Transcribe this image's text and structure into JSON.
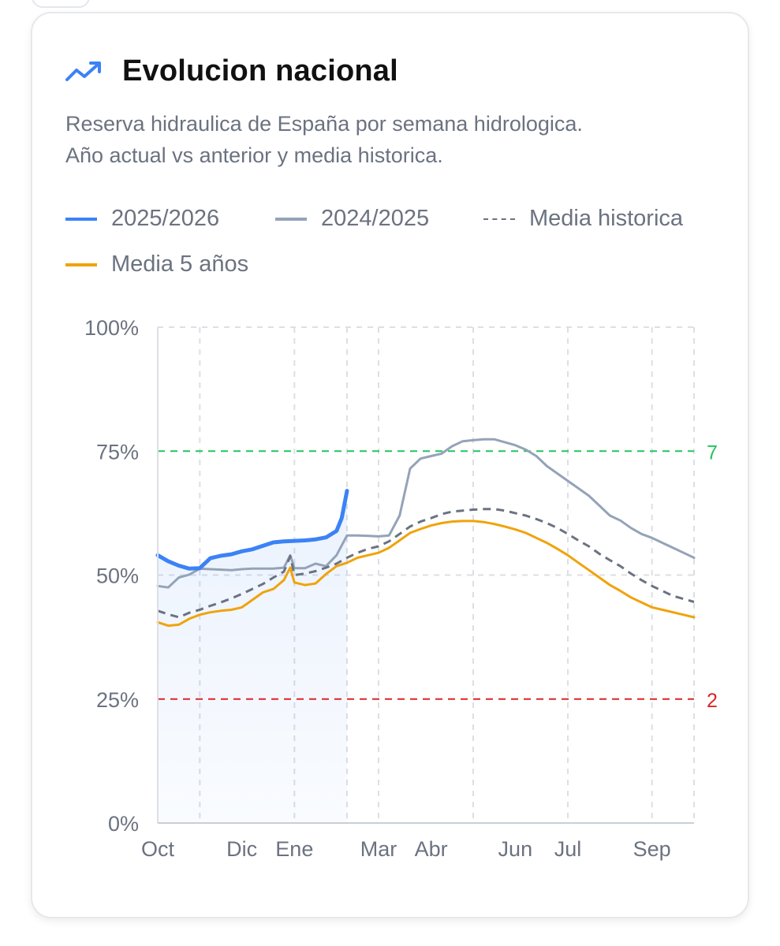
{
  "header": {
    "icon": "trending-up-icon",
    "title": "Evolucion nacional",
    "subtitle_line1": "Reserva hidraulica de España por semana hidrologica.",
    "subtitle_line2": "Año actual vs anterior y media historica."
  },
  "colors": {
    "current": "#3b82f6",
    "previous": "#94a3b8",
    "historical": "#6b7280",
    "five_year": "#f0a30a",
    "upper_threshold": "#22c55e",
    "lower_threshold": "#dc2626",
    "grid": "#dcdfe4"
  },
  "legend": [
    {
      "label": "2025/2026",
      "style": "solid",
      "color": "#3b82f6"
    },
    {
      "label": "2024/2025",
      "style": "solid",
      "color": "#94a3b8"
    },
    {
      "label": "Media historica",
      "style": "dashed",
      "color": "#6b7280"
    },
    {
      "label": "Media 5 años",
      "style": "solid",
      "color": "#f0a30a"
    }
  ],
  "chart_data": {
    "type": "line",
    "title": "Evolucion nacional",
    "ylabel": "",
    "xlabel": "",
    "ylim": [
      0,
      100
    ],
    "xlim": [
      0,
      51
    ],
    "yticks": [
      {
        "value": 100,
        "label": "100%"
      },
      {
        "value": 75,
        "label": "75%"
      },
      {
        "value": 50,
        "label": "50%"
      },
      {
        "value": 25,
        "label": "25%"
      },
      {
        "value": 0,
        "label": "0%"
      }
    ],
    "xticks": [
      {
        "week": 0,
        "label": "Oct"
      },
      {
        "week": 8,
        "label": "Dic"
      },
      {
        "week": 13,
        "label": "Ene"
      },
      {
        "week": 21,
        "label": "Mar"
      },
      {
        "week": 26,
        "label": "Abr"
      },
      {
        "week": 34,
        "label": "Jun"
      },
      {
        "week": 39,
        "label": "Jul"
      },
      {
        "week": 47,
        "label": "Sep"
      }
    ],
    "vertical_gridlines_weeks": [
      0,
      4,
      13,
      18,
      21,
      30,
      39,
      47,
      51
    ],
    "thresholds": [
      {
        "value": 75,
        "label": "7",
        "color": "#22c55e"
      },
      {
        "value": 25,
        "label": "2",
        "color": "#dc2626"
      }
    ],
    "series": [
      {
        "name": "2025/2026",
        "color": "#3b82f6",
        "style": "solid",
        "fill": true,
        "x": [
          0,
          1,
          2,
          3,
          4,
          5,
          6,
          7,
          8,
          9,
          10,
          11,
          12,
          13,
          14,
          15,
          16,
          17,
          17.5,
          18
        ],
        "values": [
          54.0,
          52.8,
          51.9,
          51.3,
          51.4,
          53.4,
          53.9,
          54.2,
          54.8,
          55.2,
          55.9,
          56.6,
          56.8,
          56.9,
          57.0,
          57.2,
          57.6,
          58.9,
          61.5,
          67.0
        ]
      },
      {
        "name": "2024/2025",
        "color": "#94a3b8",
        "style": "solid",
        "x": [
          0,
          1,
          2,
          3,
          4,
          5,
          6,
          7,
          8,
          9,
          10,
          11,
          12,
          12.6,
          13,
          14,
          15,
          16,
          17,
          18,
          19,
          20,
          21,
          22,
          23,
          24,
          25,
          26,
          27,
          28,
          29,
          30,
          31,
          32,
          33,
          34,
          35,
          36,
          37,
          38,
          39,
          40,
          41,
          42,
          43,
          44,
          45,
          46,
          47,
          48,
          49,
          50,
          51
        ],
        "values": [
          47.8,
          47.5,
          49.5,
          50.1,
          51.3,
          51.2,
          51.1,
          51.0,
          51.2,
          51.3,
          51.3,
          51.3,
          51.5,
          54.0,
          51.4,
          51.4,
          52.3,
          51.8,
          54.0,
          58.0,
          58.0,
          57.9,
          57.8,
          58.0,
          62.0,
          71.5,
          73.5,
          74.0,
          74.5,
          76.0,
          77.0,
          77.2,
          77.4,
          77.4,
          76.8,
          76.2,
          75.3,
          74.0,
          72.0,
          70.5,
          69.0,
          67.5,
          66.0,
          64.0,
          62.0,
          61.0,
          59.5,
          58.3,
          57.5,
          56.5,
          55.5,
          54.5,
          53.5
        ]
      },
      {
        "name": "Media historica",
        "color": "#6b7280",
        "style": "dashed",
        "x": [
          0,
          1,
          2,
          3,
          4,
          5,
          6,
          7,
          8,
          9,
          10,
          11,
          12,
          12.6,
          13,
          14,
          15,
          16,
          17,
          18,
          19,
          20,
          21,
          22,
          23,
          24,
          25,
          26,
          27,
          28,
          29,
          30,
          31,
          32,
          33,
          34,
          35,
          36,
          37,
          38,
          39,
          40,
          41,
          42,
          43,
          44,
          45,
          46,
          47,
          48,
          49,
          50,
          51
        ],
        "values": [
          42.8,
          42.1,
          41.5,
          42.4,
          43.0,
          43.8,
          44.5,
          45.3,
          46.2,
          47.2,
          48.2,
          49.5,
          50.7,
          53.8,
          50.0,
          50.3,
          50.8,
          51.5,
          52.3,
          53.5,
          54.5,
          55.3,
          55.8,
          56.8,
          58.3,
          59.8,
          60.8,
          61.5,
          62.3,
          62.8,
          63.0,
          63.2,
          63.3,
          63.3,
          63.0,
          62.5,
          62.0,
          61.3,
          60.5,
          59.5,
          58.3,
          57.0,
          55.8,
          54.3,
          53.0,
          51.8,
          50.3,
          49.0,
          47.8,
          46.8,
          45.8,
          45.2,
          44.6
        ]
      },
      {
        "name": "Media 5 años",
        "color": "#f0a30a",
        "style": "solid",
        "x": [
          0,
          1,
          2,
          3,
          4,
          5,
          6,
          7,
          8,
          9,
          10,
          11,
          12,
          12.6,
          13,
          14,
          15,
          16,
          17,
          18,
          19,
          20,
          21,
          22,
          23,
          24,
          25,
          26,
          27,
          28,
          29,
          30,
          31,
          32,
          33,
          34,
          35,
          36,
          37,
          38,
          39,
          40,
          41,
          42,
          43,
          44,
          45,
          46,
          47,
          48,
          49,
          50,
          51
        ],
        "values": [
          40.5,
          39.8,
          40.0,
          41.2,
          42.0,
          42.5,
          42.8,
          43.0,
          43.5,
          45.0,
          46.5,
          47.2,
          49.0,
          51.5,
          48.5,
          48.0,
          48.3,
          50.2,
          51.8,
          52.5,
          53.5,
          54.0,
          54.5,
          55.5,
          57.0,
          58.5,
          59.3,
          60.0,
          60.5,
          60.8,
          60.9,
          60.9,
          60.7,
          60.3,
          59.8,
          59.2,
          58.5,
          57.5,
          56.5,
          55.3,
          54.0,
          52.5,
          51.0,
          49.5,
          48.0,
          46.8,
          45.5,
          44.5,
          43.5,
          43.0,
          42.5,
          42.0,
          41.5
        ]
      }
    ]
  }
}
